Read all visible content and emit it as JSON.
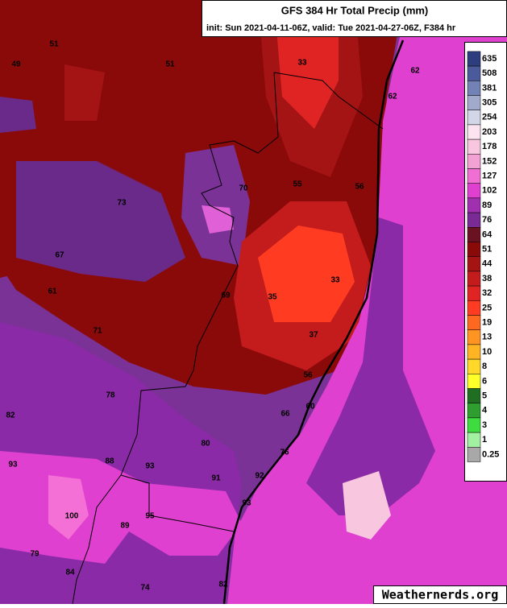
{
  "header": {
    "title": "GFS 384 Hr Total Precip (mm)",
    "subtitle": "init: Sun 2021-04-11-06Z, valid: Tue 2021-04-27-06Z, F384 hr"
  },
  "colorbar": {
    "levels": [
      635,
      508,
      381,
      305,
      254,
      203,
      178,
      152,
      127,
      102,
      89,
      76,
      64,
      51,
      44,
      38,
      32,
      25,
      19,
      13,
      10,
      8,
      6,
      5,
      4,
      3,
      1,
      0.25
    ],
    "colors": [
      "#2e3d7e",
      "#4a5a9a",
      "#7282b4",
      "#a2aacb",
      "#d2d6e6",
      "#fbe4ef",
      "#f8c6df",
      "#f4a2d3",
      "#f06fd2",
      "#e040d0",
      "#a030b0",
      "#7a2a94",
      "#6a1222",
      "#8a0a0a",
      "#a51414",
      "#c41c1c",
      "#e02424",
      "#ff3b22",
      "#ff6820",
      "#ff9422",
      "#ffb424",
      "#ffd82a",
      "#ffff2a",
      "#1f6e22",
      "#2e9e2e",
      "#3fdc3f",
      "#a2f0a2",
      "#a8a8a8"
    ]
  },
  "map_labels": [
    51,
    49,
    51,
    33,
    62,
    62,
    55,
    56,
    70,
    73,
    67,
    61,
    33,
    35,
    69,
    71,
    37,
    56,
    78,
    60,
    66,
    82,
    80,
    93,
    88,
    93,
    76,
    91,
    92,
    93,
    100,
    95,
    89,
    79,
    84,
    74,
    82
  ],
  "watermark": "Weathernerds.org"
}
